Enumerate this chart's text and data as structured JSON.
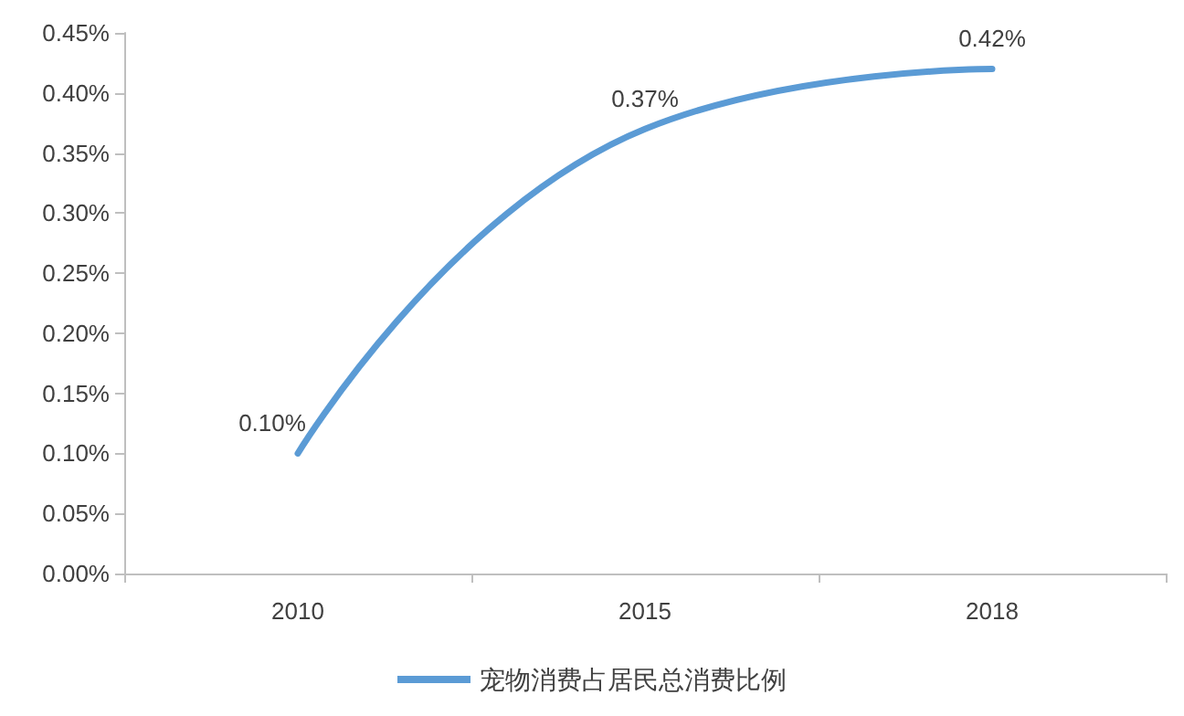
{
  "chart_data": {
    "type": "line",
    "categories": [
      "2010",
      "2015",
      "2018"
    ],
    "series": [
      {
        "name": "宠物消费占居民总消费比例",
        "color": "#5b9bd5",
        "values": [
          0.1,
          0.37,
          0.42
        ],
        "value_labels": [
          "0.10%",
          "0.37%",
          "0.42%"
        ]
      }
    ],
    "ylim": [
      0,
      0.45
    ],
    "yticks": [
      {
        "value": 0,
        "label": "0.00%"
      },
      {
        "value": 0.05,
        "label": "0.05%"
      },
      {
        "value": 0.1,
        "label": "0.10%"
      },
      {
        "value": 0.15,
        "label": "0.15%"
      },
      {
        "value": 0.2,
        "label": "0.20%"
      },
      {
        "value": 0.25,
        "label": "0.25%"
      },
      {
        "value": 0.3,
        "label": "0.30%"
      },
      {
        "value": 0.35,
        "label": "0.35%"
      },
      {
        "value": 0.4,
        "label": "0.40%"
      },
      {
        "value": 0.45,
        "label": "0.45%"
      }
    ],
    "grid": false,
    "legend": "bottom",
    "marker": "none",
    "line_style": "solid"
  }
}
